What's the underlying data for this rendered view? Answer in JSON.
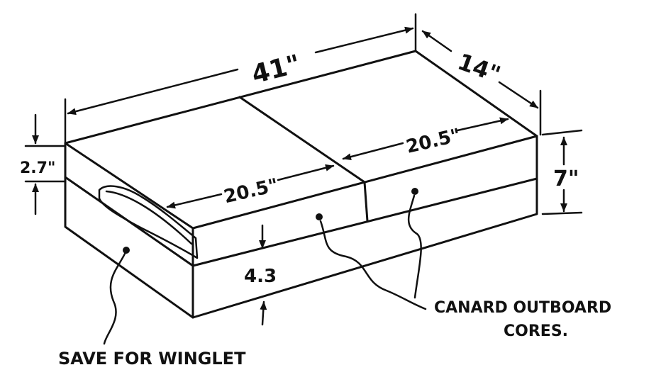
{
  "diagram": {
    "dimensions": {
      "length": "41\"",
      "depth": "14\"",
      "height": "7\"",
      "top_layer": "2.7\"",
      "half_back": "20.5\"",
      "half_front": "20.5\"",
      "bottom_layer": "4.3"
    },
    "labels": {
      "winglet": "SAVE FOR WINGLET",
      "canard_line1": "CANARD OUTBOARD",
      "canard_line2": "CORES."
    }
  }
}
